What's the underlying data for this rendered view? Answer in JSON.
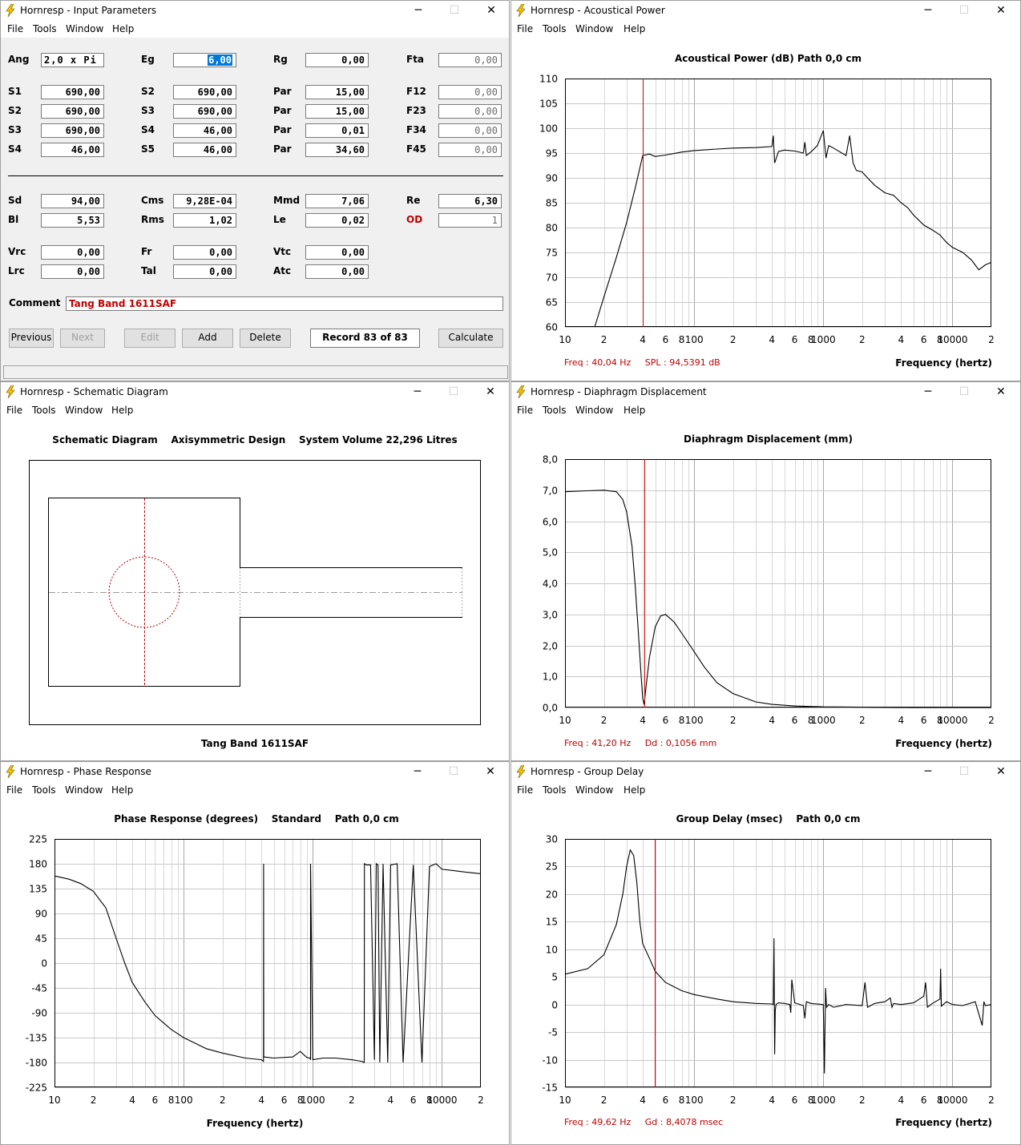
{
  "menu": [
    "File",
    "Tools",
    "Window",
    "Help"
  ],
  "input_window": {
    "title": "Hornresp - Input Parameters",
    "fields": [
      {
        "label": "Ang",
        "value": "2,0 x Pi",
        "align": "left"
      },
      {
        "label": "Eg",
        "value": "6,00",
        "selected": true
      },
      {
        "label": "Rg",
        "value": "0,00"
      },
      {
        "label": "Fta",
        "value": "0,00",
        "dim": true
      },
      {
        "label": "S1",
        "value": "690,00"
      },
      {
        "label": "S2",
        "value": "690,00"
      },
      {
        "label": "Par",
        "value": "15,00"
      },
      {
        "label": "F12",
        "value": "0,00",
        "dim": true
      },
      {
        "label": "S2",
        "value": "690,00"
      },
      {
        "label": "S3",
        "value": "690,00"
      },
      {
        "label": "Par",
        "value": "15,00"
      },
      {
        "label": "F23",
        "value": "0,00",
        "dim": true
      },
      {
        "label": "S3",
        "value": "690,00"
      },
      {
        "label": "S4",
        "value": "46,00"
      },
      {
        "label": "Par",
        "value": "0,01"
      },
      {
        "label": "F34",
        "value": "0,00",
        "dim": true
      },
      {
        "label": "S4",
        "value": "46,00"
      },
      {
        "label": "S5",
        "value": "46,00"
      },
      {
        "label": "Par",
        "value": "34,60"
      },
      {
        "label": "F45",
        "value": "0,00",
        "dim": true
      },
      {
        "label": "Sd",
        "value": "94,00"
      },
      {
        "label": "Cms",
        "value": "9,28E-04"
      },
      {
        "label": "Mmd",
        "value": "7,06"
      },
      {
        "label": "Re",
        "value": "6,30"
      },
      {
        "label": "Bl",
        "value": "5,53"
      },
      {
        "label": "Rms",
        "value": "1,02"
      },
      {
        "label": "Le",
        "value": "0,02"
      },
      {
        "label": "OD",
        "value": "1",
        "red": true,
        "dim": true
      },
      {
        "label": "Vrc",
        "value": "0,00"
      },
      {
        "label": "Fr",
        "value": "0,00"
      },
      {
        "label": "Vtc",
        "value": "0,00"
      },
      {
        "label": "Lrc",
        "value": "0,00"
      },
      {
        "label": "Tal",
        "value": "0,00"
      },
      {
        "label": "Atc",
        "value": "0,00"
      }
    ],
    "comment_label": "Comment",
    "comment": "Tang Band 1611SAF",
    "buttons": {
      "previous": "Previous",
      "next": "Next",
      "edit": "Edit",
      "add": "Add",
      "delete": "Delete",
      "calculate": "Calculate"
    },
    "record": "Record 83 of 83"
  },
  "power_window": {
    "title": "Hornresp - Acoustical Power",
    "chart_title": "Acoustical Power (dB)    Path 0,0 cm",
    "readout": "Freq : 40,04 Hz     SPL : 94,5391 dB",
    "xlabel": "Frequency (hertz)"
  },
  "schematic_window": {
    "title": "Hornresp - Schematic Diagram",
    "heading": "Schematic Diagram    Axisymmetric Design    System Volume 22,296 Litres",
    "caption": "Tang Band 1611SAF"
  },
  "disp_window": {
    "title": "Hornresp - Diaphragm Displacement",
    "chart_title": "Diaphragm Displacement (mm)",
    "readout": "Freq : 41,20 Hz     Dd : 0,1056 mm",
    "xlabel": "Frequency (hertz)"
  },
  "phase_window": {
    "title": "Hornresp - Phase Response",
    "chart_title": "Phase Response (degrees)    Standard    Path 0,0 cm",
    "xlabel": "Frequency (hertz)"
  },
  "gd_window": {
    "title": "Hornresp - Group Delay",
    "chart_title": "Group Delay (msec)    Path 0,0 cm",
    "readout": "Freq : 49,62 Hz     Gd : 8,4078 msec",
    "xlabel": "Frequency (hertz)"
  },
  "chart_data": [
    {
      "type": "line",
      "title": "Acoustical Power (dB)    Path 0,0 cm",
      "xlabel": "Frequency (hertz)",
      "xscale": "log",
      "xlim": [
        10,
        20000
      ],
      "ylim": [
        60,
        110
      ],
      "yticks": [
        60,
        65,
        70,
        75,
        80,
        85,
        90,
        95,
        100,
        105,
        110
      ],
      "yticklabels": [
        "60",
        "65",
        "70",
        "75",
        "80",
        "85",
        "90",
        "95",
        "100",
        "105",
        "110"
      ],
      "xtick_labels": [
        [
          10,
          "10"
        ],
        [
          20,
          "2"
        ],
        [
          40,
          "4"
        ],
        [
          60,
          "6"
        ],
        [
          80,
          "8"
        ],
        [
          100,
          "100"
        ],
        [
          200,
          "2"
        ],
        [
          400,
          "4"
        ],
        [
          600,
          "6"
        ],
        [
          800,
          "8"
        ],
        [
          1000,
          "1000"
        ],
        [
          2000,
          "2"
        ],
        [
          4000,
          "4"
        ],
        [
          6000,
          "6"
        ],
        [
          8000,
          "8"
        ],
        [
          10000,
          "10000"
        ],
        [
          20000,
          "2"
        ]
      ],
      "marker_x": 40.04,
      "x": [
        17,
        20,
        25,
        30,
        35,
        38,
        40,
        45,
        50,
        60,
        80,
        100,
        150,
        200,
        300,
        400,
        410,
        420,
        450,
        500,
        600,
        700,
        720,
        740,
        800,
        900,
        1000,
        1050,
        1100,
        1200,
        1500,
        1600,
        1700,
        1800,
        2000,
        2200,
        2500,
        3000,
        3500,
        4000,
        4500,
        5000,
        6000,
        7000,
        8000,
        9000,
        10000,
        12000,
        14000,
        16000,
        18000,
        20000
      ],
      "y": [
        60,
        66,
        74,
        81,
        88,
        92,
        94.5,
        94.8,
        94.3,
        94.6,
        95.2,
        95.5,
        95.8,
        96,
        96.1,
        96.3,
        98.5,
        93,
        95.3,
        95.6,
        95.4,
        95,
        97.2,
        94.5,
        95.2,
        96.5,
        99.5,
        94,
        96.5,
        96,
        94.5,
        98.5,
        93,
        91.5,
        91.2,
        90,
        88.5,
        87,
        86.5,
        85,
        84,
        82.5,
        80.5,
        79.5,
        78.5,
        77,
        76,
        75,
        73.5,
        71.5,
        72.5,
        73
      ]
    },
    {
      "type": "line",
      "title": "Diaphragm Displacement (mm)",
      "xlabel": "Frequency (hertz)",
      "xscale": "log",
      "xlim": [
        10,
        20000
      ],
      "ylim": [
        0,
        8
      ],
      "yticks": [
        0,
        1,
        2,
        3,
        4,
        5,
        6,
        7,
        8
      ],
      "yticklabels": [
        "0,0",
        "1,0",
        "2,0",
        "3,0",
        "4,0",
        "5,0",
        "6,0",
        "7,0",
        "8,0"
      ],
      "xtick_labels": [
        [
          10,
          "10"
        ],
        [
          20,
          "2"
        ],
        [
          40,
          "4"
        ],
        [
          60,
          "6"
        ],
        [
          80,
          "8"
        ],
        [
          100,
          "100"
        ],
        [
          200,
          "2"
        ],
        [
          400,
          "4"
        ],
        [
          600,
          "6"
        ],
        [
          800,
          "8"
        ],
        [
          1000,
          "1000"
        ],
        [
          2000,
          "2"
        ],
        [
          4000,
          "4"
        ],
        [
          6000,
          "6"
        ],
        [
          8000,
          "8"
        ],
        [
          10000,
          "10000"
        ],
        [
          20000,
          "2"
        ]
      ],
      "marker_x": 41.2,
      "x": [
        10,
        15,
        20,
        25,
        28,
        30,
        33,
        35,
        37,
        39,
        40,
        41,
        42,
        45,
        50,
        55,
        60,
        70,
        80,
        100,
        120,
        150,
        200,
        300,
        400,
        600,
        1000,
        2000,
        5000,
        10000,
        20000
      ],
      "y": [
        6.95,
        6.98,
        7.0,
        6.95,
        6.7,
        6.3,
        5.2,
        3.9,
        2.4,
        0.9,
        0.3,
        0.1,
        0.5,
        1.6,
        2.6,
        2.95,
        3.0,
        2.75,
        2.4,
        1.8,
        1.3,
        0.8,
        0.45,
        0.18,
        0.1,
        0.05,
        0.02,
        0.01,
        0,
        0,
        0
      ]
    },
    {
      "type": "line",
      "title": "Phase Response (degrees)    Standard    Path 0,0 cm",
      "xlabel": "Frequency (hertz)",
      "xscale": "log",
      "xlim": [
        10,
        20000
      ],
      "ylim": [
        -225,
        225
      ],
      "yticks": [
        -225,
        -180,
        -135,
        -90,
        -45,
        0,
        45,
        90,
        135,
        180,
        225
      ],
      "yticklabels": [
        "-225",
        "-180",
        "-135",
        "-90",
        "-45",
        "0",
        "45",
        "90",
        "135",
        "180",
        "225"
      ],
      "xtick_labels": [
        [
          10,
          "10"
        ],
        [
          20,
          "2"
        ],
        [
          40,
          "4"
        ],
        [
          60,
          "6"
        ],
        [
          80,
          "8"
        ],
        [
          100,
          "100"
        ],
        [
          200,
          "2"
        ],
        [
          400,
          "4"
        ],
        [
          600,
          "6"
        ],
        [
          800,
          "8"
        ],
        [
          1000,
          "1000"
        ],
        [
          2000,
          "2"
        ],
        [
          4000,
          "4"
        ],
        [
          6000,
          "6"
        ],
        [
          8000,
          "8"
        ],
        [
          10000,
          "10000"
        ],
        [
          20000,
          "2"
        ]
      ],
      "x": [
        10,
        13,
        16,
        20,
        25,
        30,
        35,
        40,
        50,
        60,
        80,
        100,
        150,
        200,
        300,
        400,
        415,
        416,
        417,
        500,
        700,
        800,
        900,
        950,
        960,
        961,
        1000,
        1200,
        1500,
        2000,
        2400,
        2500,
        2510,
        2600,
        2800,
        3000,
        3100,
        3200,
        3300,
        3500,
        3800,
        4000,
        4500,
        5000,
        6000,
        7000,
        8000,
        9000,
        10000,
        12000,
        15000,
        20000
      ],
      "y": [
        158,
        152,
        144,
        130,
        100,
        45,
        0,
        -35,
        -70,
        -95,
        -120,
        -135,
        -155,
        -163,
        -172,
        -175,
        -178,
        180,
        -170,
        -172,
        -170,
        -160,
        -171,
        -172,
        -175,
        180,
        -175,
        -172,
        -172,
        -175,
        -178,
        -180,
        180,
        178,
        178,
        -175,
        180,
        178,
        -180,
        180,
        -180,
        178,
        180,
        -180,
        178,
        -180,
        175,
        180,
        170,
        168,
        165,
        162
      ]
    },
    {
      "type": "line",
      "title": "Group Delay (msec)    Path 0,0 cm",
      "xlabel": "Frequency (hertz)",
      "xscale": "log",
      "xlim": [
        10,
        20000
      ],
      "ylim": [
        -15,
        30
      ],
      "yticks": [
        -15,
        -10,
        -5,
        0,
        5,
        10,
        15,
        20,
        25,
        30
      ],
      "yticklabels": [
        "-15",
        "-10",
        "-5",
        "0",
        "5",
        "10",
        "15",
        "20",
        "25",
        "30"
      ],
      "xtick_labels": [
        [
          10,
          "10"
        ],
        [
          20,
          "2"
        ],
        [
          40,
          "4"
        ],
        [
          60,
          "6"
        ],
        [
          80,
          "8"
        ],
        [
          100,
          "100"
        ],
        [
          200,
          "2"
        ],
        [
          400,
          "4"
        ],
        [
          600,
          "6"
        ],
        [
          800,
          "8"
        ],
        [
          1000,
          "1000"
        ],
        [
          2000,
          "2"
        ],
        [
          4000,
          "4"
        ],
        [
          6000,
          "6"
        ],
        [
          8000,
          "8"
        ],
        [
          10000,
          "10000"
        ],
        [
          20000,
          "2"
        ]
      ],
      "marker_x": 49.62,
      "x": [
        10,
        15,
        20,
        25,
        28,
        30,
        32,
        34,
        36,
        38,
        40,
        45,
        50,
        60,
        80,
        100,
        150,
        200,
        300,
        400,
        410,
        415,
        420,
        425,
        430,
        450,
        500,
        550,
        560,
        570,
        600,
        700,
        720,
        740,
        800,
        1000,
        1020,
        1040,
        1060,
        1100,
        1200,
        1500,
        2000,
        2100,
        2200,
        2500,
        3000,
        3300,
        3400,
        3500,
        4000,
        5000,
        6000,
        6200,
        6400,
        7000,
        8000,
        8100,
        8200,
        9000,
        10000,
        12000,
        15000,
        17000,
        17500,
        18000,
        20000
      ],
      "y": [
        5.5,
        6.5,
        9,
        14.5,
        20,
        25,
        28,
        27,
        22,
        15,
        11,
        8.4,
        6,
        4,
        2.5,
        1.8,
        1,
        0.5,
        0.2,
        0.1,
        0,
        12,
        -9,
        -1,
        0,
        0.3,
        0.2,
        0,
        -1.5,
        4.5,
        0.3,
        -0.2,
        -2.5,
        0.5,
        0.2,
        0,
        -12.5,
        3,
        -0.5,
        0,
        -0.5,
        0,
        -0.2,
        4,
        -0.5,
        0.2,
        0.5,
        1.2,
        -0.5,
        0.2,
        0,
        0.3,
        1.5,
        4,
        -0.5,
        0.2,
        1,
        6.5,
        -0.3,
        0.5,
        0,
        -0.2,
        0.5,
        -3.8,
        0.5,
        -0.2,
        0
      ]
    }
  ]
}
